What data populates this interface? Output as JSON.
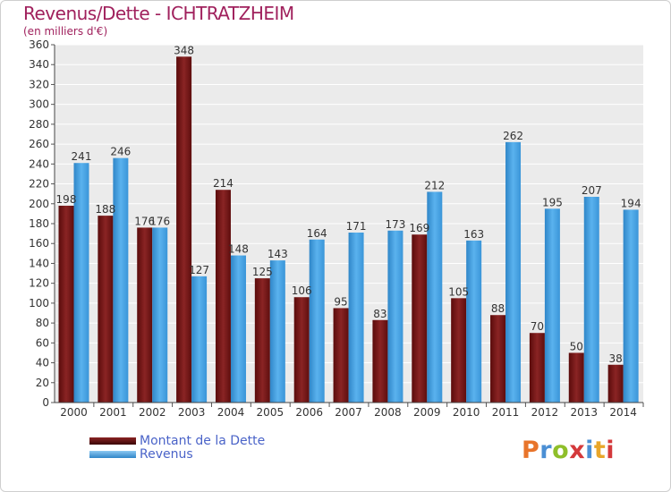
{
  "title": "Revenus/Dette - ICHTRATZHEIM",
  "subtitle": "(en milliers d'€)",
  "logo": {
    "text": "Proxiti",
    "letter_colors": [
      "#e8742a",
      "#4b8fd4",
      "#8fbf2a",
      "#d4393b",
      "#4b8fd4",
      "#e8a62a",
      "#d4393b"
    ]
  },
  "chart_data": {
    "type": "bar",
    "categories": [
      "2000",
      "2001",
      "2002",
      "2003",
      "2004",
      "2005",
      "2006",
      "2007",
      "2008",
      "2009",
      "2010",
      "2011",
      "2012",
      "2013",
      "2014"
    ],
    "series": [
      {
        "name": "Montant de la Dette",
        "color": "#7a1515",
        "values": [
          198,
          188,
          176,
          348,
          214,
          125,
          106,
          95,
          83,
          169,
          105,
          88,
          70,
          50,
          38
        ]
      },
      {
        "name": "Revenus",
        "color": "#3d9de0",
        "values": [
          241,
          246,
          176,
          127,
          148,
          143,
          164,
          171,
          173,
          212,
          163,
          262,
          195,
          207,
          194
        ]
      }
    ],
    "ylim": [
      0,
      360
    ],
    "ytick_step": 20,
    "grid": true,
    "xlabel": "",
    "ylabel": "",
    "legend_position": "bottom-left"
  }
}
